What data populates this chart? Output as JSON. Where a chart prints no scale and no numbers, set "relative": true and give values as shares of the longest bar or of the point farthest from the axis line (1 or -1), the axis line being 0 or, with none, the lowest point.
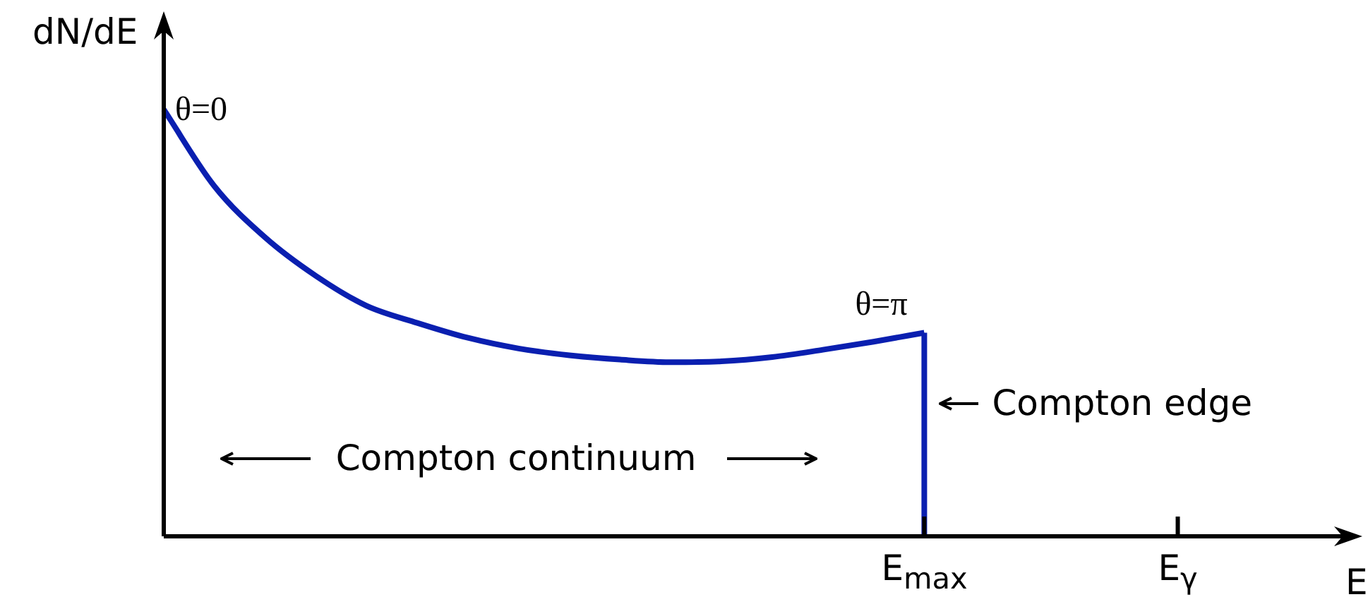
{
  "chart_data": {
    "type": "line",
    "relative": true,
    "xlabel": "E",
    "ylabel": "dN/dE",
    "categories": [
      null,
      null,
      null,
      null,
      null,
      null,
      null,
      null,
      null,
      null,
      null,
      null,
      null,
      null,
      null,
      "E$_{max}$",
      null,
      null,
      null,
      null,
      "E$_{γ}$",
      null,
      null,
      null
    ],
    "series": [
      {
        "color": "#0a1fb0",
        "values": [
          1,
          0.82,
          0.7,
          0.61,
          0.54,
          0.5,
          0.465,
          0.44,
          0.424,
          0.414,
          0.408,
          0.41,
          0.42,
          0.437,
          0.456,
          0.477,
          null,
          null,
          null,
          null,
          null,
          null,
          null,
          null
        ]
      }
    ],
    "ref_lines": [
      {
        "axis": "x",
        "value": "E$_{max}$",
        "color": "#0a1fb0"
      }
    ],
    "annotations": [
      "θ=0",
      {
        "text": "θ=π",
        "x": "E$_{max}$",
        "y": 0.477
      },
      {
        "text": "Compton edge",
        "x": "E$_{max}$",
        "y": 0.31
      },
      "Compton continuum"
    ],
    "legend": false,
    "marker": "none",
    "line_style": "solid"
  }
}
